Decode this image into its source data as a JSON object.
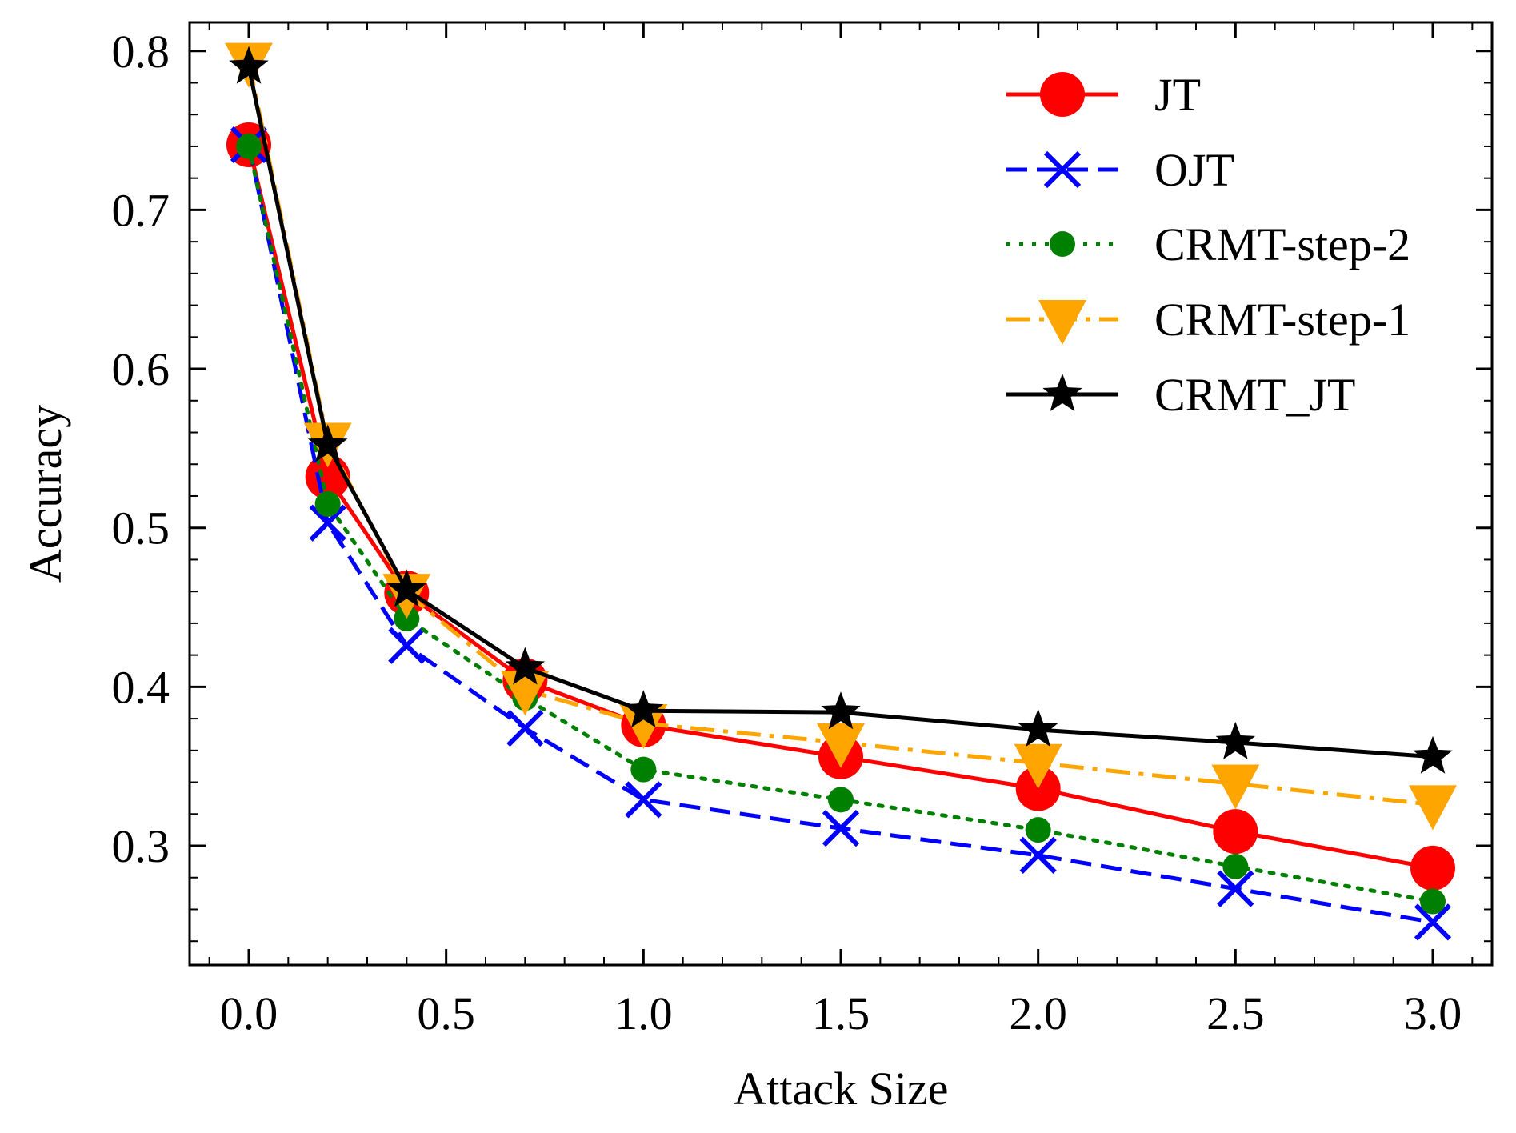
{
  "chart_data": {
    "type": "line",
    "title": "",
    "xlabel": "Attack Size",
    "ylabel": "Accuracy",
    "xlim": [
      -0.15,
      3.15
    ],
    "ylim": [
      0.225,
      0.818
    ],
    "x": [
      0.0,
      0.2,
      0.4,
      0.7,
      1.0,
      1.5,
      2.0,
      2.5,
      3.0
    ],
    "x_ticks": [
      0.0,
      0.5,
      1.0,
      1.5,
      2.0,
      2.5,
      3.0
    ],
    "x_tick_labels": [
      "0.0",
      "0.5",
      "1.0",
      "1.5",
      "2.0",
      "2.5",
      "3.0"
    ],
    "y_ticks": [
      0.3,
      0.4,
      0.5,
      0.6,
      0.7,
      0.8
    ],
    "y_tick_labels": [
      "0.3",
      "0.4",
      "0.5",
      "0.6",
      "0.7",
      "0.8"
    ],
    "grid": false,
    "legend_position": "top-right",
    "series": [
      {
        "name": "JT",
        "color": "#ff0000",
        "dash": "solid",
        "marker": "circle",
        "values": [
          0.741,
          0.532,
          0.459,
          0.404,
          0.376,
          0.356,
          0.336,
          0.309,
          0.286
        ]
      },
      {
        "name": "OJT",
        "color": "#0000ff",
        "dash": "dashed",
        "marker": "x",
        "values": [
          0.741,
          0.503,
          0.426,
          0.374,
          0.329,
          0.311,
          0.294,
          0.273,
          0.252
        ]
      },
      {
        "name": "CRMT-step-2",
        "color": "#008000",
        "dash": "dotted",
        "marker": "dot",
        "values": [
          0.74,
          0.515,
          0.443,
          0.393,
          0.348,
          0.329,
          0.31,
          0.287,
          0.265
        ]
      },
      {
        "name": "CRMT-step-1",
        "color": "#ffa500",
        "dash": "dashdot",
        "marker": "triangle-down",
        "values": [
          0.793,
          0.554,
          0.459,
          0.398,
          0.377,
          0.365,
          0.352,
          0.339,
          0.326
        ]
      },
      {
        "name": "CRMT_JT",
        "color": "#000000",
        "dash": "solid",
        "marker": "star",
        "values": [
          0.79,
          0.552,
          0.461,
          0.412,
          0.385,
          0.384,
          0.373,
          0.365,
          0.356
        ]
      }
    ]
  }
}
